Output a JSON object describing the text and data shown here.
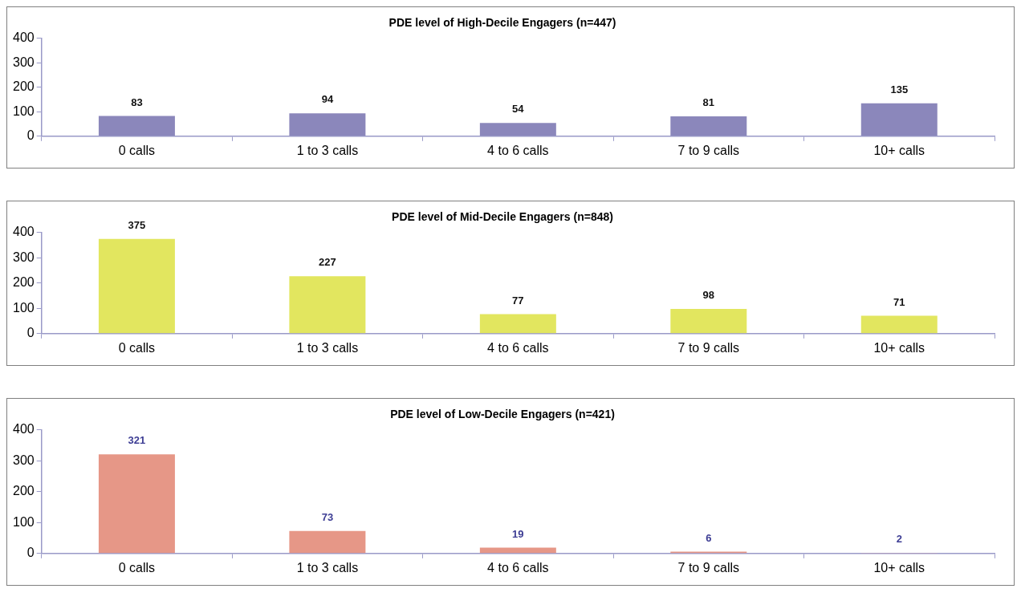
{
  "chart_data": [
    {
      "type": "bar",
      "title": "PDE level of High-Decile Engagers (n=447)",
      "categories": [
        "0 calls",
        "1 to 3 calls",
        "4 to 6 calls",
        "7 to 9 calls",
        "10+ calls"
      ],
      "values": [
        83,
        94,
        54,
        81,
        135
      ],
      "color": "#8b87bb",
      "ylim": [
        0,
        400
      ],
      "yticks": [
        0,
        100,
        200,
        300,
        400
      ],
      "grid": false,
      "legend": false,
      "data_labels": true
    },
    {
      "type": "bar",
      "title": "PDE level of Mid-Decile Engagers (n=848)",
      "categories": [
        "0 calls",
        "1 to 3 calls",
        "4 to 6 calls",
        "7 to 9 calls",
        "10+ calls"
      ],
      "values": [
        375,
        227,
        77,
        98,
        71
      ],
      "color": "#e2e65f",
      "ylim": [
        0,
        400
      ],
      "yticks": [
        0,
        100,
        200,
        300,
        400
      ],
      "grid": false,
      "legend": false,
      "data_labels": true
    },
    {
      "type": "bar",
      "title": "PDE level of Low-Decile Engagers (n=421)",
      "categories": [
        "0 calls",
        "1 to 3 calls",
        "4 to 6 calls",
        "7 to 9 calls",
        "10+ calls"
      ],
      "values": [
        321,
        73,
        19,
        6,
        2
      ],
      "color": "#e69787",
      "ylim": [
        0,
        400
      ],
      "yticks": [
        0,
        100,
        200,
        300,
        400
      ],
      "grid": false,
      "legend": false,
      "data_labels": true
    }
  ]
}
